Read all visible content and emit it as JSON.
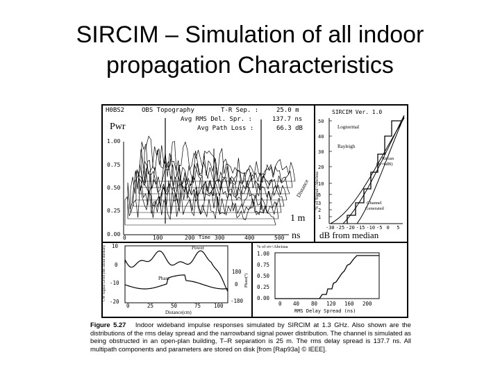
{
  "slide": {
    "title_line1": "SIRCIM – Simulation of all indoor",
    "title_line2": "propagation Characteristics"
  },
  "impulse_panel": {
    "id": "H0BS2",
    "header": "OBS Topography",
    "tr_label": "T-R Sep. :",
    "tr_value": "25.0 m",
    "rms_label": "Avg RMS Del. Spr. :",
    "rms_value": "137.7 ns",
    "loss_label": "Avg Path Loss :",
    "loss_value": "66.3 dB",
    "y_title": "Pwr",
    "y_ticks": [
      "1.00",
      "0.75",
      "0.50",
      "0.25",
      "0.00"
    ],
    "x_ticks": [
      "0",
      "100",
      "200",
      "300",
      "400",
      "500"
    ],
    "x_mid_label": "Time",
    "x_unit": "ns",
    "distance_label": "Distance",
    "distance_unit": "1 m"
  },
  "cdf_panel": {
    "title": "SIRCIM Ver. 1.0",
    "y_label": "% of Signal<Abcissa",
    "y_ticks": [
      "50",
      "40",
      "30",
      "20",
      "10",
      "5",
      "3",
      "2",
      "1"
    ],
    "x_ticks": [
      "-30",
      "-25",
      "-20",
      "-15",
      "-10",
      "-5",
      "0",
      "5"
    ],
    "x_label": "dB from median",
    "curve_labels": [
      "Lognormal",
      "Rayleigh",
      "Rician",
      "(K=6dB)",
      "Channel",
      "Generated"
    ]
  },
  "power_phase_panel": {
    "y_left_label": "CW Signal Level (dB about median)",
    "y_left_ticks": [
      "10",
      "0",
      "-10",
      "-20"
    ],
    "y_right_label": "Phase(°)",
    "y_right_ticks": [
      "180",
      "0",
      "-180"
    ],
    "x_ticks": [
      "0",
      "25",
      "50",
      "75",
      "100"
    ],
    "x_label": "Distance(cm)",
    "power_label": "Power",
    "phase_label": "Phase"
  },
  "rms_cdf_panel": {
    "y_label": "% of στ<Abcissa",
    "y_ticks": [
      "1.00",
      "0.75",
      "0.50",
      "0.25",
      "0.00"
    ],
    "x_ticks": [
      "0",
      "40",
      "80",
      "120",
      "160",
      "200"
    ],
    "x_label": "RMS Delay Spread (ns)"
  },
  "caption": {
    "figure_label": "Figure 5.27",
    "text": "Indoor wideband impulse responses simulated by SIRCIM at 1.3 GHz. Also shown are the distributions of the rms delay spread and the narrowband signal power distribution. The channel is simulated as being obstructed in an open-plan building, T–R separation is 25 m. The rms delay spread is 137.7 ns. All multipath components and parameters are stored on disk [from [Rap93a] © IEEE]."
  }
}
